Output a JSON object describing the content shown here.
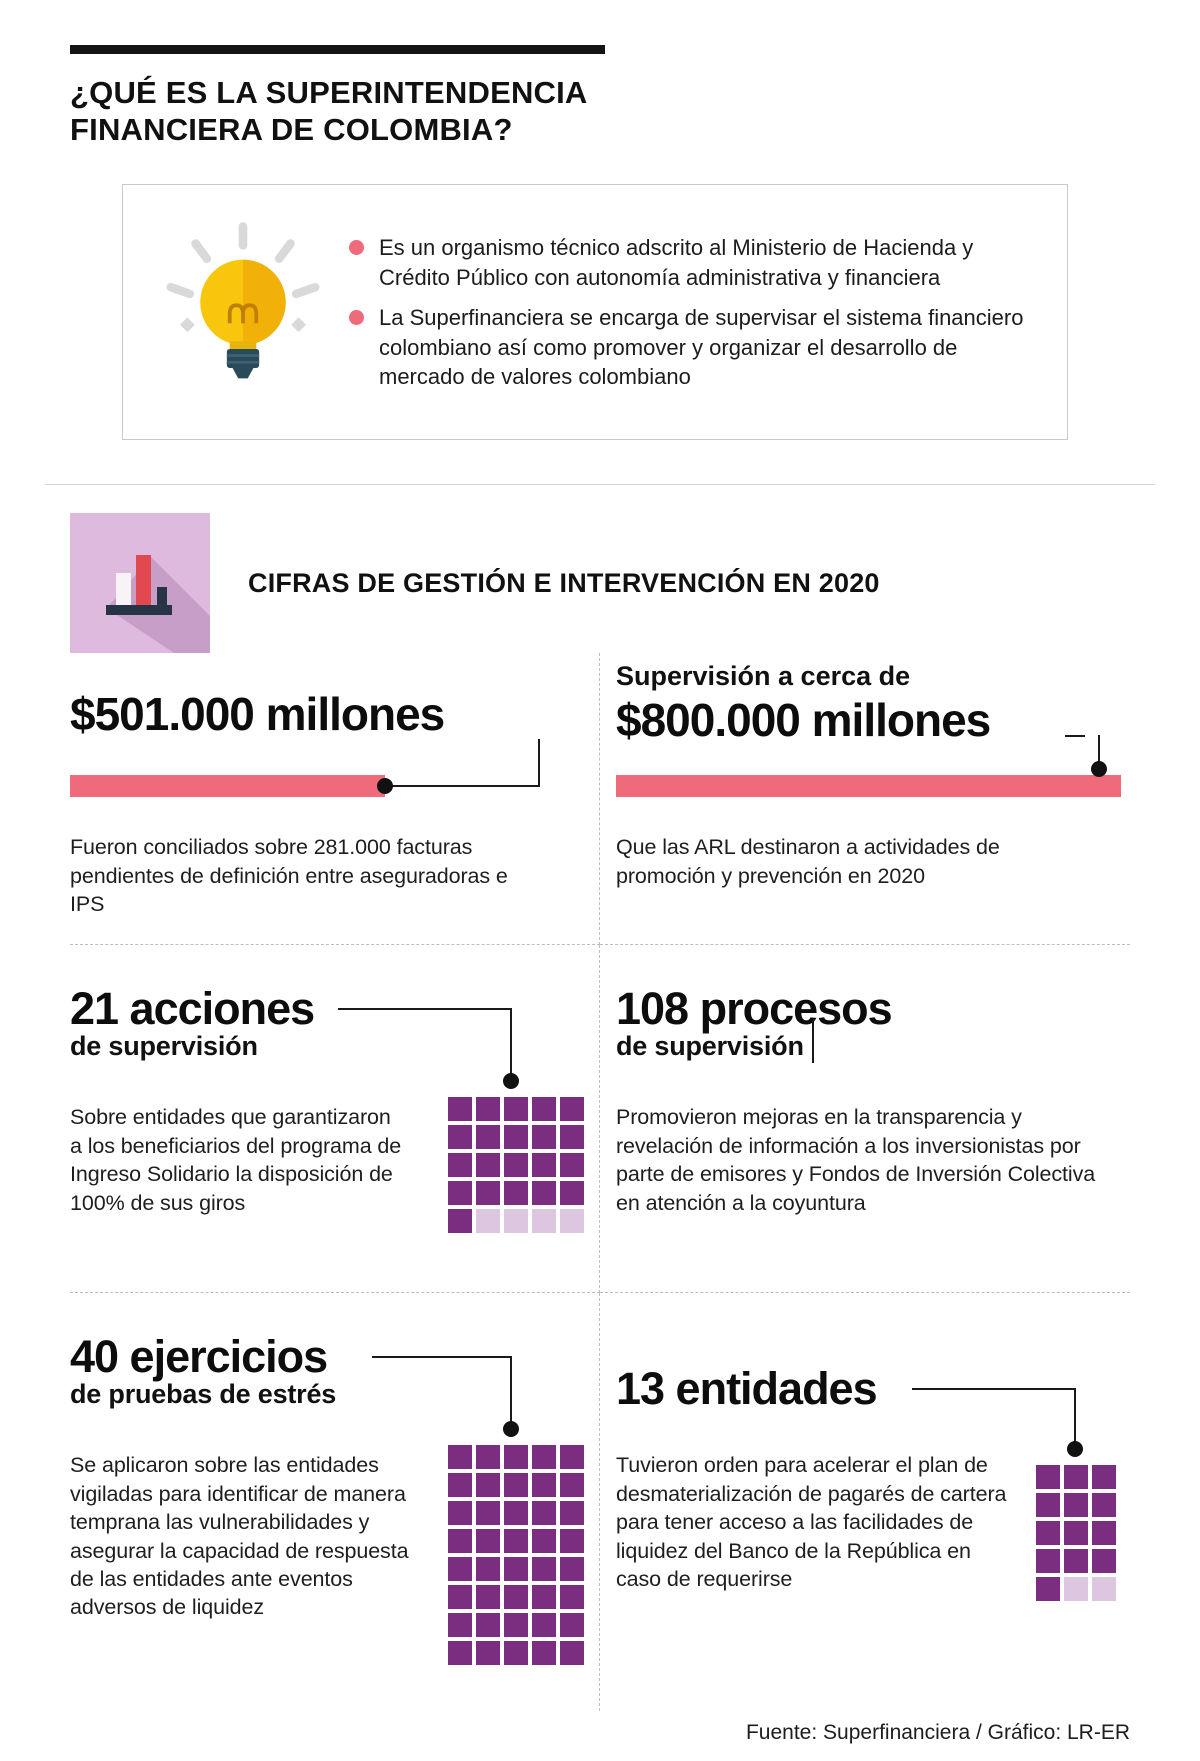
{
  "colors": {
    "accent_pink": "#ef6a7a",
    "purple_dark": "#7b2d80",
    "purple_light": "#ddc6e0",
    "icon_bg": "#debadf"
  },
  "header": {
    "title_line1": "¿QUÉ ES LA SUPERINTENDENCIA",
    "title_line2": "FINANCIERA DE COLOMBIA?"
  },
  "intro": {
    "bullets": [
      "Es un organismo técnico adscrito al Ministerio de Hacienda y Crédito Público con autonomía administrativa y financiera",
      "La Superfinanciera se encarga de supervisar el sistema financiero colombiano así como promover y organizar el desarrollo de mercado de valores colombiano"
    ]
  },
  "section": {
    "heading": "CIFRAS DE GESTIÓN E INTERVENCIÓN EN 2020"
  },
  "stats": {
    "conciliados": {
      "value": "$501.000 millones",
      "description": "Fueron conciliados sobre 281.000 facturas pendientes de definición entre aseguradoras e IPS"
    },
    "arl": {
      "kicker": "Supervisión a cerca de",
      "value": "$800.000 millones",
      "description": "Que las ARL destinaron a actividades de promoción y prevención en 2020"
    },
    "acciones": {
      "value": "21 acciones",
      "subtitle": "de supervisión",
      "description": "Sobre entidades que garantizaron a los beneficiarios del programa de Ingreso Solidario la disposición de 100% de sus giros"
    },
    "procesos": {
      "value": "108 procesos",
      "subtitle": "de supervisión",
      "description": "Promovieron mejoras en la transparencia y revelación de información a los inversionistas por parte de emisores y Fondos de Inversión Colectiva en atención a la coyuntura"
    },
    "ejercicios": {
      "value": "40 ejercicios",
      "subtitle": "de pruebas de estrés",
      "description": "Se aplicaron sobre las entidades vigiladas para identificar de manera temprana las vulnerabilidades y asegurar la capacidad de respuesta de las entidades ante eventos adversos de liquidez"
    },
    "entidades": {
      "value": "13 entidades",
      "description": "Tuvieron orden para acelerar el plan de desmaterialización de pagarés de cartera para tener acceso a las facilidades de liquidez del Banco de la República en caso de requerirse"
    }
  },
  "bars": {
    "conciliados_fill_pct": 67,
    "arl_fill_pct": 100
  },
  "waffles": {
    "acciones": {
      "cols": 5,
      "total": 25,
      "filled": 21
    },
    "ejercicios": {
      "cols": 5,
      "total": 40,
      "filled": 40
    },
    "entidades": {
      "cols": 3,
      "total": 15,
      "filled": 13
    }
  },
  "footer": {
    "source": "Fuente: Superfinanciera / Gráfico: LR-ER"
  },
  "chart_data": [
    {
      "type": "bar",
      "title": "Cifras de gestión e intervención en 2020",
      "categories": [
        "Conciliados entre aseguradoras e IPS",
        "Recursos ARL promoción y prevención"
      ],
      "values": [
        501000,
        800000
      ],
      "value_labels": [
        "$501.000 millones",
        "$800.000 millones"
      ],
      "unit": "millones de pesos",
      "notes": [
        "Fueron conciliados sobre 281.000 facturas pendientes de definición entre aseguradoras e IPS",
        "Supervisión a cerca de $800.000 millones que las ARL destinaron a actividades de promoción y prevención en 2020"
      ]
    },
    {
      "type": "waffle",
      "label": "21 acciones de supervisión",
      "value": 21,
      "grid": {
        "cols": 5,
        "rows": 5,
        "filled": 21
      }
    },
    {
      "type": "waffle",
      "label": "40 ejercicios de pruebas de estrés",
      "value": 40,
      "grid": {
        "cols": 5,
        "rows": 8,
        "filled": 40
      }
    },
    {
      "type": "waffle",
      "label": "13 entidades",
      "value": 13,
      "grid": {
        "cols": 3,
        "rows": 5,
        "filled": 13
      }
    },
    {
      "type": "kpi",
      "label": "108 procesos de supervisión",
      "value": 108
    }
  ]
}
